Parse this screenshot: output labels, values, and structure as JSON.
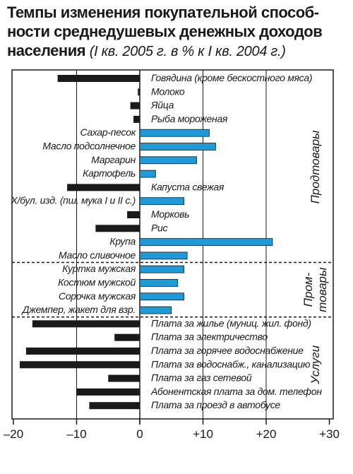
{
  "chart_data": {
    "type": "bar",
    "orientation": "horizontal",
    "title": "Темпы изменения покупательной способности среднедушевых денежных доходов населения",
    "title_lines": [
      "Темпы изменения покупательной способ-",
      "ности среднедушевых денежных доходов",
      "населения"
    ],
    "subtitle": "(I кв. 2005 г. в % к I кв. 2004 г.)",
    "xlim": [
      -20,
      30
    ],
    "xticks": [
      -20,
      -10,
      0,
      10,
      20,
      30
    ],
    "xtick_labels": [
      "–20",
      "–10",
      "0",
      "+10",
      "+20",
      "+30"
    ],
    "grid": "vertical at -10, +10, +20",
    "colors": {
      "positive": "#1e9ad6",
      "negative": "#1a1a1a"
    },
    "groups": [
      {
        "name": "Продтовары",
        "first": 0,
        "last": 13
      },
      {
        "name": "Пром-\nтовары",
        "lines": [
          "Пром-",
          "товары"
        ],
        "first": 14,
        "last": 17
      },
      {
        "name": "Услуги",
        "first": 18,
        "last": 24
      }
    ],
    "categories": [
      "Говядина (кроме бескостного мяса)",
      "Молоко",
      "Яйца",
      "Рыба мороженая",
      "Сахар-песок",
      "Масло подсолнечное",
      "Маргарин",
      "Картофель",
      "Капуста свежая",
      "Х/бул. изд. (пш. мука I и II с.)",
      "Морковь",
      "Рис",
      "Крупа",
      "Масло сливочное",
      "Куртка мужская",
      "Костюм мужской",
      "Сорочка мужская",
      "Джемпер, жакет для взр.",
      "Плата за жилье (муниц. жил. фонд)",
      "Плата за электричество",
      "Плата за горячее водоснабжение",
      "Плата за водоснабж., канализацию",
      "Плата за газ сетевой",
      "Абонентская плата за дом. телефон",
      "Плата за проезд в автобусе"
    ],
    "values": [
      -13,
      -0.3,
      -1.5,
      -1,
      11,
      12,
      9,
      2.5,
      -11.5,
      7,
      -2,
      -7,
      21,
      7.5,
      7,
      6,
      7,
      5,
      -17,
      -4,
      -18,
      -19,
      -5,
      -10,
      -8
    ]
  }
}
